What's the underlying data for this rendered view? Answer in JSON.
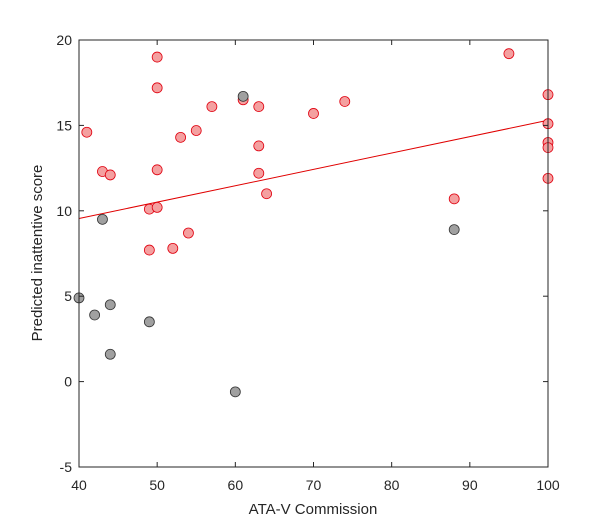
{
  "chart_data": {
    "type": "scatter",
    "title": "",
    "xlabel": "ATA-V Commission",
    "ylabel": "Predicted inattentive score",
    "xlim": [
      40,
      100
    ],
    "ylim": [
      -5,
      20
    ],
    "xticks": [
      "40",
      "50",
      "60",
      "70",
      "80",
      "90",
      "100"
    ],
    "yticks": [
      "-5",
      "0",
      "5",
      "10",
      "15",
      "20"
    ],
    "grid": false,
    "legend": "none",
    "colors": {
      "red_fill": "#f4a0a0",
      "red_edge": "#e0000f",
      "gray_fill": "#a0a0a0",
      "gray_edge": "#333333",
      "fit_line": "#e00000",
      "axis": "#262626"
    },
    "series": [
      {
        "color": "red",
        "points": [
          [
            41,
            14.6
          ],
          [
            43,
            12.3
          ],
          [
            44,
            12.1
          ],
          [
            49,
            10.1
          ],
          [
            49,
            7.7
          ],
          [
            50,
            19.0
          ],
          [
            50,
            17.2
          ],
          [
            50,
            12.4
          ],
          [
            50,
            10.2
          ],
          [
            52,
            7.8
          ],
          [
            53,
            14.3
          ],
          [
            54,
            8.7
          ],
          [
            55,
            14.7
          ],
          [
            57,
            16.1
          ],
          [
            61,
            16.5
          ],
          [
            63,
            16.1
          ],
          [
            63,
            13.8
          ],
          [
            63,
            12.2
          ],
          [
            64,
            11.0
          ],
          [
            70,
            15.7
          ],
          [
            74,
            16.4
          ],
          [
            88,
            10.7
          ],
          [
            95,
            19.2
          ],
          [
            100,
            16.8
          ],
          [
            100,
            15.1
          ],
          [
            100,
            14.0
          ],
          [
            100,
            13.7
          ],
          [
            100,
            11.9
          ]
        ]
      },
      {
        "color": "gray",
        "points": [
          [
            40,
            4.9
          ],
          [
            42,
            3.9
          ],
          [
            43,
            9.5
          ],
          [
            44,
            4.5
          ],
          [
            44,
            1.6
          ],
          [
            49,
            3.5
          ],
          [
            60,
            -0.6
          ],
          [
            61,
            16.7
          ],
          [
            88,
            8.9
          ]
        ]
      }
    ],
    "fit_line": {
      "x": [
        40,
        100
      ],
      "y": [
        9.55,
        15.3
      ]
    }
  }
}
